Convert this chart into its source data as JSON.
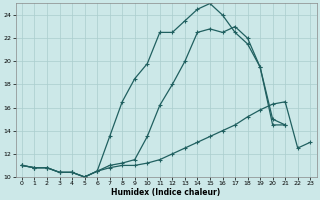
{
  "xlabel": "Humidex (Indice chaleur)",
  "xlim": [
    -0.5,
    23.5
  ],
  "ylim": [
    10,
    25
  ],
  "yticks": [
    10,
    12,
    14,
    16,
    18,
    20,
    22,
    24
  ],
  "xticks": [
    0,
    1,
    2,
    3,
    4,
    5,
    6,
    7,
    8,
    9,
    10,
    11,
    12,
    13,
    14,
    15,
    16,
    17,
    18,
    19,
    20,
    21,
    22,
    23
  ],
  "bg_color": "#cce8e8",
  "grid_color": "#aacece",
  "line_color": "#206060",
  "line1_x": [
    0,
    1,
    2,
    3,
    4,
    5,
    6,
    7,
    8,
    9,
    10,
    11,
    12,
    13,
    14,
    15,
    16,
    17,
    18,
    19,
    20,
    21,
    22,
    23
  ],
  "line1_y": [
    11.0,
    10.8,
    10.8,
    10.4,
    10.4,
    10.0,
    10.5,
    10.8,
    11.0,
    11.0,
    11.2,
    11.5,
    12.0,
    12.5,
    13.0,
    13.5,
    14.0,
    14.5,
    15.2,
    15.8,
    16.3,
    16.5,
    12.5,
    13.0
  ],
  "line2_x": [
    0,
    1,
    2,
    3,
    4,
    5,
    6,
    7,
    8,
    9,
    10,
    11,
    12,
    13,
    14,
    15,
    16,
    17,
    18,
    19,
    20,
    21
  ],
  "line2_y": [
    11.0,
    10.8,
    10.8,
    10.4,
    10.4,
    10.0,
    10.5,
    13.5,
    16.5,
    18.5,
    19.8,
    22.5,
    22.5,
    23.5,
    24.5,
    25.0,
    24.0,
    22.5,
    21.5,
    19.5,
    15.0,
    14.5
  ],
  "line3_x": [
    0,
    1,
    2,
    3,
    4,
    5,
    6,
    7,
    8,
    9,
    10,
    11,
    12,
    13,
    14,
    15,
    16,
    17,
    18,
    19,
    20,
    21
  ],
  "line3_y": [
    11.0,
    10.8,
    10.8,
    10.4,
    10.4,
    10.0,
    10.5,
    11.0,
    11.2,
    11.5,
    13.5,
    16.2,
    18.0,
    20.0,
    22.5,
    22.8,
    22.5,
    23.0,
    22.0,
    19.5,
    14.5,
    14.5
  ]
}
